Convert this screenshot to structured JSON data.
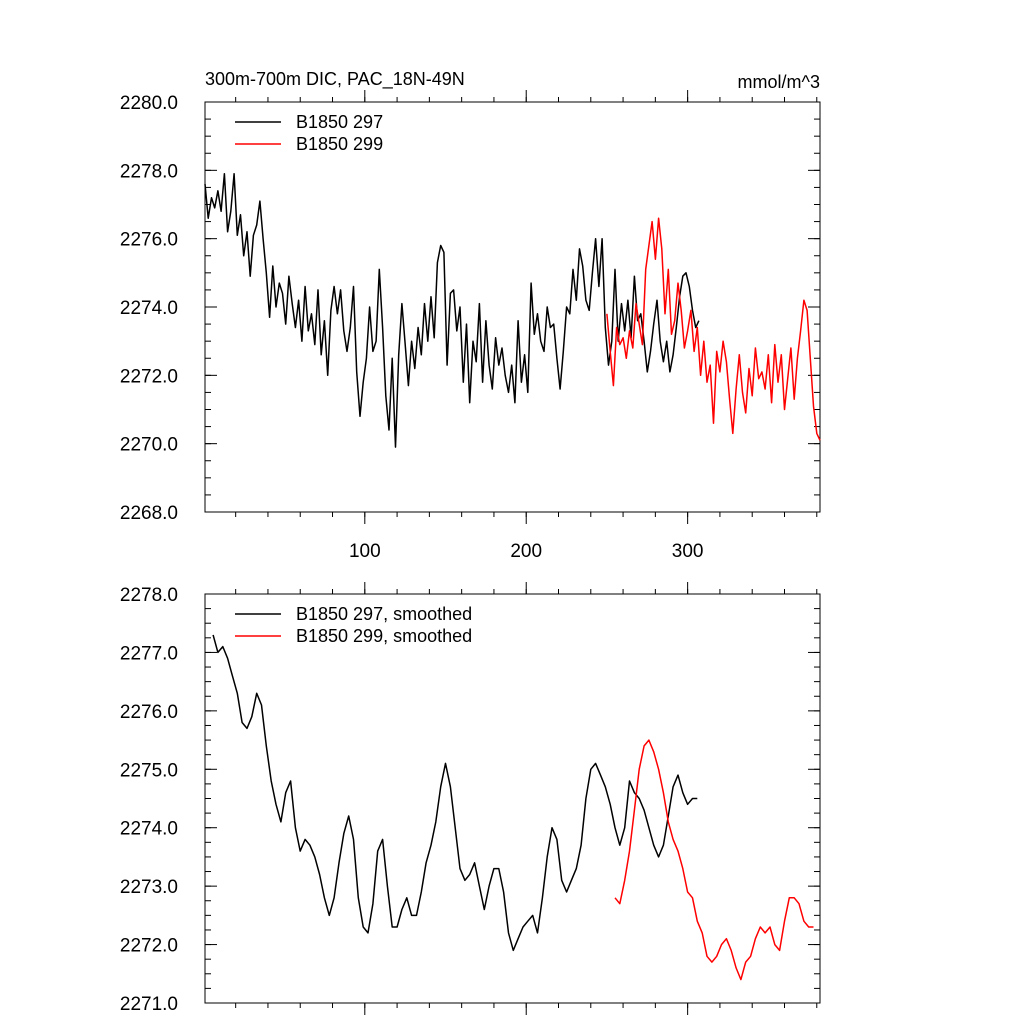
{
  "chart_data": [
    {
      "type": "line",
      "title": "300m-700m DIC, PAC_18N-49N",
      "units": "mmol/m^3",
      "xlim": [
        1,
        382
      ],
      "ylim": [
        2268,
        2280
      ],
      "yticks": [
        2268,
        2270,
        2272,
        2274,
        2276,
        2278,
        2280
      ],
      "ytick_labels": [
        "2268.0",
        "2270.0",
        "2272.0",
        "2274.0",
        "2276.0",
        "2278.0",
        "2280.0"
      ],
      "xticks": [
        100,
        200,
        300
      ],
      "xtick_labels": [
        "100",
        "200",
        "300"
      ],
      "legend": "top-left",
      "series": [
        {
          "name": "B1850 297",
          "color": "#000000",
          "x": [
            1,
            3,
            5,
            7,
            9,
            11,
            13,
            15,
            17,
            19,
            21,
            23,
            25,
            27,
            29,
            31,
            33,
            35,
            37,
            39,
            41,
            43,
            45,
            47,
            49,
            51,
            53,
            55,
            57,
            59,
            61,
            63,
            65,
            67,
            69,
            71,
            73,
            75,
            77,
            79,
            81,
            83,
            85,
            87,
            89,
            91,
            93,
            95,
            97,
            99,
            101,
            103,
            105,
            107,
            109,
            111,
            113,
            115,
            117,
            119,
            121,
            123,
            125,
            127,
            129,
            131,
            133,
            135,
            137,
            139,
            141,
            143,
            145,
            147,
            149,
            151,
            153,
            155,
            157,
            159,
            161,
            163,
            165,
            167,
            169,
            171,
            173,
            175,
            177,
            179,
            181,
            183,
            185,
            187,
            189,
            191,
            193,
            195,
            197,
            199,
            201,
            203,
            205,
            207,
            209,
            211,
            213,
            215,
            217,
            219,
            221,
            223,
            225,
            227,
            229,
            231,
            233,
            235,
            237,
            239,
            241,
            243,
            245,
            247,
            249,
            251,
            253,
            255,
            257,
            259,
            261,
            263,
            265,
            267,
            269,
            271,
            273,
            275,
            277,
            279,
            281,
            283,
            285,
            287,
            289,
            291,
            293,
            295,
            297,
            299,
            301,
            303,
            305,
            307
          ],
          "values": [
            2277.6,
            2276.6,
            2277.2,
            2276.9,
            2277.4,
            2276.8,
            2277.9,
            2276.2,
            2276.8,
            2277.9,
            2276.1,
            2276.7,
            2275.5,
            2276.2,
            2274.9,
            2276.1,
            2276.4,
            2277.1,
            2276.0,
            2275.0,
            2273.7,
            2275.2,
            2274.0,
            2274.7,
            2274.4,
            2273.5,
            2274.9,
            2274.1,
            2273.4,
            2274.2,
            2273.0,
            2274.6,
            2273.3,
            2273.8,
            2272.9,
            2274.5,
            2272.6,
            2273.6,
            2272.0,
            2273.9,
            2274.6,
            2273.8,
            2274.5,
            2273.3,
            2272.7,
            2273.4,
            2274.6,
            2272.1,
            2270.8,
            2271.8,
            2272.5,
            2274.0,
            2272.7,
            2273.0,
            2275.1,
            2273.4,
            2271.4,
            2270.4,
            2272.5,
            2269.9,
            2272.6,
            2274.1,
            2272.9,
            2271.7,
            2273.0,
            2272.2,
            2273.4,
            2272.6,
            2274.1,
            2273.0,
            2274.3,
            2273.1,
            2275.3,
            2275.8,
            2275.6,
            2272.3,
            2274.4,
            2274.5,
            2273.3,
            2274.0,
            2271.8,
            2273.5,
            2271.2,
            2273.0,
            2272.4,
            2274.1,
            2271.8,
            2273.6,
            2272.3,
            2271.6,
            2273.1,
            2272.3,
            2272.8,
            2272.0,
            2271.5,
            2272.3,
            2271.2,
            2273.6,
            2271.8,
            2272.6,
            2271.5,
            2274.7,
            2273.2,
            2273.8,
            2273.0,
            2272.7,
            2274.0,
            2273.4,
            2273.5,
            2272.5,
            2271.6,
            2272.7,
            2274.0,
            2273.8,
            2275.1,
            2274.2,
            2275.7,
            2275.2,
            2274.2,
            2273.9,
            2275.0,
            2276.0,
            2274.6,
            2276.0,
            2273.4,
            2272.3,
            2273.0,
            2275.1,
            2273.0,
            2274.1,
            2273.3,
            2274.2,
            2273.1,
            2274.9,
            2273.6,
            2273.8,
            2273.0,
            2272.1,
            2272.7,
            2273.5,
            2274.2,
            2273.0,
            2272.4,
            2273.0,
            2272.1,
            2272.6,
            2273.4,
            2274.3,
            2274.9,
            2275.0,
            2274.6,
            2273.9,
            2273.4,
            2273.6
          ]
        },
        {
          "name": "B1850 299",
          "color": "#ff0000",
          "x": [
            250,
            252,
            254,
            256,
            258,
            260,
            262,
            264,
            266,
            268,
            270,
            272,
            274,
            276,
            278,
            280,
            282,
            284,
            286,
            288,
            290,
            292,
            294,
            296,
            298,
            300,
            302,
            304,
            306,
            308,
            310,
            312,
            314,
            316,
            318,
            320,
            322,
            324,
            326,
            328,
            330,
            332,
            334,
            336,
            338,
            340,
            342,
            344,
            346,
            348,
            350,
            352,
            354,
            356,
            358,
            360,
            362,
            364,
            366,
            368,
            370,
            372,
            374,
            376,
            378,
            380,
            382
          ],
          "values": [
            2273.8,
            2272.7,
            2271.7,
            2273.4,
            2272.9,
            2273.1,
            2272.5,
            2273.3,
            2272.8,
            2274.1,
            2273.5,
            2272.9,
            2275.1,
            2275.8,
            2276.5,
            2275.4,
            2276.6,
            2275.7,
            2273.8,
            2275.1,
            2273.2,
            2273.6,
            2274.7,
            2273.9,
            2272.8,
            2273.3,
            2273.9,
            2272.7,
            2273.4,
            2272.0,
            2273.0,
            2271.8,
            2272.3,
            2270.6,
            2272.7,
            2272.1,
            2273.0,
            2272.4,
            2271.3,
            2270.3,
            2271.6,
            2272.6,
            2271.5,
            2270.9,
            2272.2,
            2271.4,
            2272.8,
            2271.9,
            2272.1,
            2271.6,
            2272.6,
            2271.2,
            2272.9,
            2271.8,
            2272.6,
            2271.0,
            2271.9,
            2272.8,
            2271.3,
            2272.5,
            2273.3,
            2274.2,
            2273.9,
            2272.5,
            2271.1,
            2270.3,
            2270.1
          ]
        }
      ]
    },
    {
      "type": "line",
      "title": "",
      "xlim": [
        1,
        382
      ],
      "ylim": [
        2271,
        2278
      ],
      "yticks": [
        2271,
        2272,
        2273,
        2274,
        2275,
        2276,
        2277,
        2278
      ],
      "ytick_labels": [
        "2271.0",
        "2272.0",
        "2273.0",
        "2274.0",
        "2275.0",
        "2276.0",
        "2277.0",
        "2278.0"
      ],
      "legend": "top-left",
      "series": [
        {
          "name": "B1850 297, smoothed",
          "color": "#000000",
          "x": [
            6,
            9,
            12,
            15,
            18,
            21,
            24,
            27,
            30,
            33,
            36,
            39,
            42,
            45,
            48,
            51,
            54,
            57,
            60,
            63,
            66,
            69,
            72,
            75,
            78,
            81,
            84,
            87,
            90,
            93,
            96,
            99,
            102,
            105,
            108,
            111,
            114,
            117,
            120,
            123,
            126,
            129,
            132,
            135,
            138,
            141,
            144,
            147,
            150,
            153,
            156,
            159,
            162,
            165,
            168,
            171,
            174,
            177,
            180,
            183,
            186,
            189,
            192,
            195,
            198,
            201,
            204,
            207,
            210,
            213,
            216,
            219,
            222,
            225,
            228,
            231,
            234,
            237,
            240,
            243,
            246,
            249,
            252,
            255,
            258,
            261,
            264,
            267,
            270,
            273,
            276,
            279,
            282,
            285,
            288,
            291,
            294,
            297,
            300,
            303,
            306
          ],
          "values": [
            2277.3,
            2277.0,
            2277.1,
            2276.9,
            2276.6,
            2276.3,
            2275.8,
            2275.7,
            2275.9,
            2276.3,
            2276.1,
            2275.4,
            2274.8,
            2274.4,
            2274.1,
            2274.6,
            2274.8,
            2274.0,
            2273.6,
            2273.8,
            2273.7,
            2273.5,
            2273.2,
            2272.8,
            2272.5,
            2272.8,
            2273.4,
            2273.9,
            2274.2,
            2273.8,
            2272.8,
            2272.3,
            2272.2,
            2272.7,
            2273.6,
            2273.8,
            2273.0,
            2272.3,
            2272.3,
            2272.6,
            2272.8,
            2272.5,
            2272.5,
            2272.9,
            2273.4,
            2273.7,
            2274.1,
            2274.7,
            2275.1,
            2274.7,
            2274.0,
            2273.3,
            2273.1,
            2273.2,
            2273.4,
            2273.0,
            2272.6,
            2273.0,
            2273.3,
            2273.3,
            2272.9,
            2272.2,
            2271.9,
            2272.1,
            2272.3,
            2272.4,
            2272.5,
            2272.2,
            2272.8,
            2273.5,
            2274.0,
            2273.8,
            2273.1,
            2272.9,
            2273.1,
            2273.3,
            2273.7,
            2274.5,
            2275.0,
            2275.1,
            2274.9,
            2274.7,
            2274.4,
            2274.0,
            2273.7,
            2274.0,
            2274.8,
            2274.6,
            2274.5,
            2274.3,
            2274.0,
            2273.7,
            2273.5,
            2273.7,
            2274.2,
            2274.7,
            2274.9,
            2274.6,
            2274.4,
            2274.5,
            2274.5
          ]
        },
        {
          "name": "B1850 299, smoothed",
          "color": "#ff0000",
          "x": [
            255,
            258,
            261,
            264,
            267,
            270,
            273,
            276,
            279,
            282,
            285,
            288,
            291,
            294,
            297,
            300,
            303,
            306,
            309,
            312,
            315,
            318,
            321,
            324,
            327,
            330,
            333,
            336,
            339,
            342,
            345,
            348,
            351,
            354,
            357,
            360,
            363,
            366,
            369,
            372,
            375,
            378
          ],
          "values": [
            2272.8,
            2272.7,
            2273.1,
            2273.6,
            2274.3,
            2275.0,
            2275.4,
            2275.5,
            2275.3,
            2275.0,
            2274.6,
            2274.1,
            2273.8,
            2273.6,
            2273.3,
            2272.9,
            2272.8,
            2272.4,
            2272.2,
            2271.8,
            2271.7,
            2271.8,
            2272.0,
            2272.1,
            2271.9,
            2271.6,
            2271.4,
            2271.7,
            2271.8,
            2272.1,
            2272.3,
            2272.2,
            2272.3,
            2272.0,
            2271.9,
            2272.4,
            2272.8,
            2272.8,
            2272.7,
            2272.4,
            2272.3,
            2272.3
          ]
        }
      ]
    }
  ]
}
